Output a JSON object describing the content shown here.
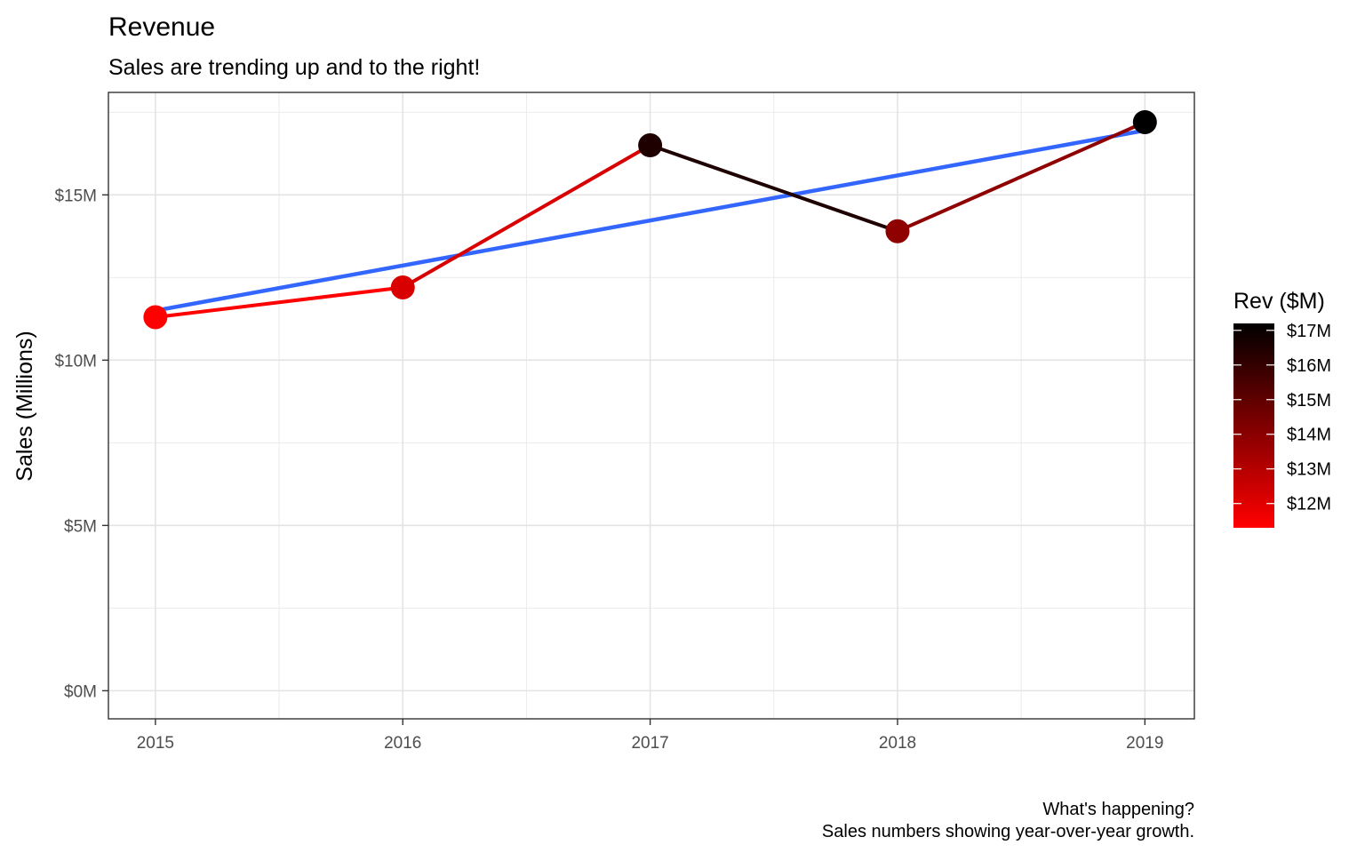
{
  "chart_data": {
    "type": "line",
    "title": "Revenue",
    "subtitle": "Sales are trending up and to the right!",
    "xlabel": "",
    "ylabel": "Sales (Millions)",
    "x": [
      2015,
      2016,
      2017,
      2018,
      2019
    ],
    "x_tick_labels": [
      "2015",
      "2016",
      "2017",
      "2018",
      "2019"
    ],
    "y_ticks": [
      0,
      5,
      10,
      15
    ],
    "y_tick_labels": [
      "$0M",
      "$5M",
      "$10M",
      "$15M"
    ],
    "ylim": [
      -0.85,
      18.1
    ],
    "xlim": [
      2014.81,
      2019.2
    ],
    "series": [
      {
        "values": [
          11.3,
          12.2,
          16.5,
          13.9,
          17.2
        ]
      }
    ],
    "trend_line": {
      "method": "linear fit",
      "color": "#3366ff",
      "start": [
        2015,
        11.5
      ],
      "end": [
        2019,
        16.95
      ]
    },
    "color_scale": {
      "title": "Rev ($M)",
      "low_value": 11.3,
      "high_value": 17.2,
      "low_color": "#ff0000",
      "high_color": "#000000",
      "breaks": [
        12,
        13,
        14,
        15,
        16,
        17
      ],
      "labels": [
        "$12M",
        "$13M",
        "$14M",
        "$15M",
        "$16M",
        "$17M"
      ],
      "legend_position": "right"
    },
    "grid": true,
    "caption": [
      "What's happening?",
      "Sales numbers showing year-over-year growth."
    ]
  }
}
